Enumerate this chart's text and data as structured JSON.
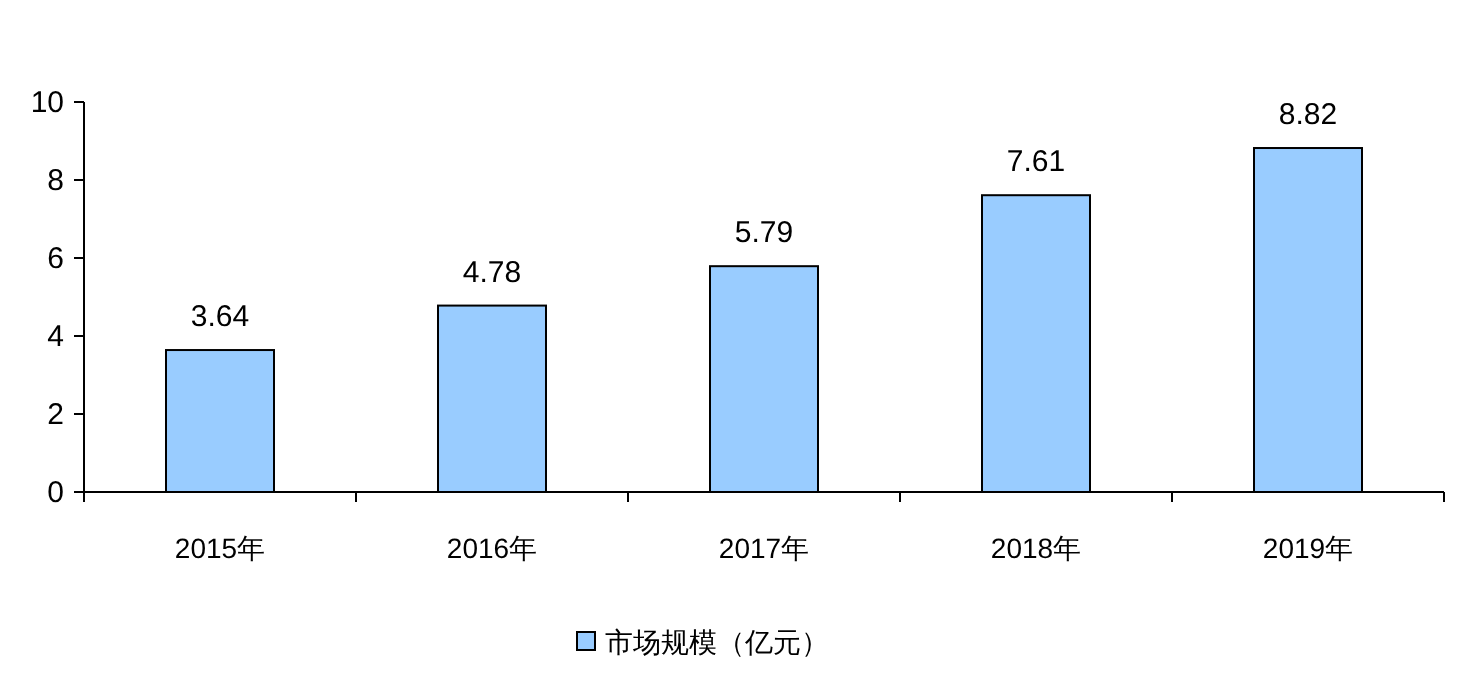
{
  "chart_data": {
    "type": "bar",
    "categories": [
      "2015年",
      "2016年",
      "2017年",
      "2018年",
      "2019年"
    ],
    "series": [
      {
        "name": "市场规模（亿元）",
        "color": "#99ccff",
        "values": [
          3.64,
          4.78,
          5.79,
          7.61,
          8.82
        ]
      }
    ],
    "ylim": [
      0,
      10
    ],
    "yticks": [
      0,
      2,
      4,
      6,
      8,
      10
    ],
    "data_labels": true,
    "legend": "bottom",
    "grid": false
  }
}
